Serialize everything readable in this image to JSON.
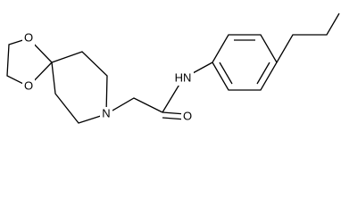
{
  "atoms": {
    "dioxolane_o_top": "O",
    "dioxolane_o_bottom": "O",
    "ring_n": "N",
    "amide_nh": "HN",
    "carbonyl_o": "O"
  }
}
